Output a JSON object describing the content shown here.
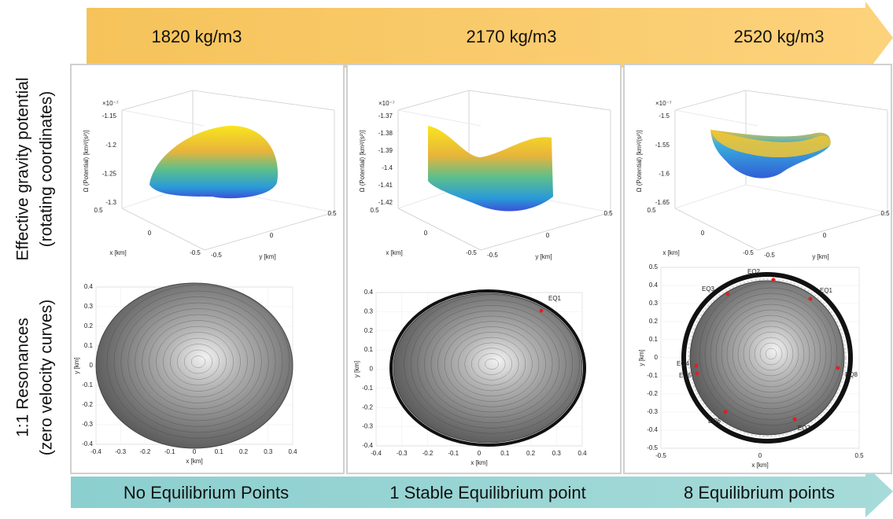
{
  "density_arrow": {
    "labels": [
      "1820 kg/m3",
      "2170 kg/m3",
      "2520 kg/m3"
    ]
  },
  "result_arrow": {
    "labels": [
      "No Equilibrium Points",
      "1 Stable Equilibrium point",
      "8 Equilibrium points"
    ]
  },
  "row_labels": [
    {
      "line1": "Effective gravity potential",
      "line2": "(rotating coordinates)"
    },
    {
      "line1": "1:1 Resonances",
      "line2": "(zero velocity curves)"
    }
  ],
  "potential_plots": [
    {
      "exponent": "×10⁻⁷",
      "z_label": "Ω (Potential) [km²/(s²)]",
      "z_ticks": [
        "-1.15",
        "-1.2",
        "-1.25",
        "-1.3"
      ],
      "x_ticks": [
        "0.5",
        "0",
        "-0.5"
      ],
      "y_ticks": [
        "-0.5",
        "0",
        "0.5"
      ],
      "x_label": "x [km]",
      "y_label": "y [km]"
    },
    {
      "exponent": "×10⁻⁷",
      "z_label": "Ω (Potential) [km²/(s²)]",
      "z_ticks": [
        "-1.37",
        "-1.38",
        "-1.39",
        "-1.4",
        "-1.41",
        "-1.42"
      ],
      "x_ticks": [
        "0.5",
        "0",
        "-0.5"
      ],
      "y_ticks": [
        "-0.5",
        "0",
        "0.5"
      ],
      "x_label": "x [km]",
      "y_label": "y [km]"
    },
    {
      "exponent": "×10⁻⁷",
      "z_label": "Ω (Potential) [km²/(s²)]",
      "z_ticks": [
        "-1.5",
        "-1.55",
        "-1.6",
        "-1.65"
      ],
      "x_ticks": [
        "0.5",
        "0",
        "-0.5"
      ],
      "y_ticks": [
        "-0.5",
        "0",
        "0.5"
      ],
      "x_label": "x [km]",
      "y_label": "y [km]"
    }
  ],
  "contour_plots": [
    {
      "x_ticks": [
        "-0.4",
        "-0.3",
        "-0.2",
        "-0.1",
        "0",
        "0.1",
        "0.2",
        "0.3",
        "0.4"
      ],
      "y_ticks": [
        "0.4",
        "0.3",
        "0.2",
        "0.1",
        "0",
        "-0.1",
        "-0.2",
        "-0.3",
        "-0.4"
      ],
      "x_label": "x [km]",
      "y_label": "y [km]"
    },
    {
      "x_ticks": [
        "-0.4",
        "-0.3",
        "-0.2",
        "-0.1",
        "0",
        "0.1",
        "0.2",
        "0.3",
        "0.4"
      ],
      "y_ticks": [
        "0.4",
        "0.3",
        "0.2",
        "0.1",
        "0",
        "-0.1",
        "-0.2",
        "-0.3",
        "-0.4"
      ],
      "x_label": "x [km]",
      "y_label": "y [km]",
      "equilibria": [
        "EQ1"
      ]
    },
    {
      "x_ticks": [
        "-0.5",
        "0",
        "0.5"
      ],
      "y_ticks": [
        "0.5",
        "0.4",
        "0.3",
        "0.2",
        "0.1",
        "0",
        "-0.1",
        "-0.2",
        "-0.3",
        "-0.4",
        "-0.5"
      ],
      "x_label": "x [km]",
      "y_label": "y [km]",
      "equilibria": [
        "EQ1",
        "EQ2",
        "EQ3",
        "EQ4",
        "EQ5",
        "EQ6",
        "EQ7",
        "EQ8"
      ]
    }
  ]
}
